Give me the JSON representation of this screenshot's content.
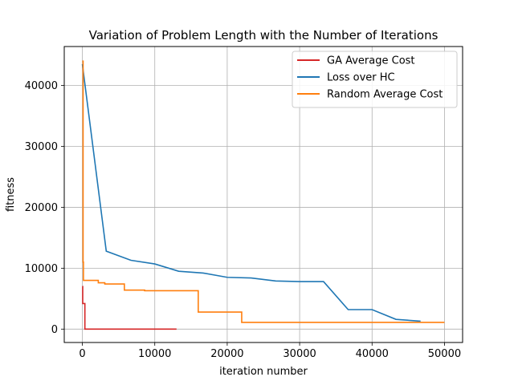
{
  "chart_data": {
    "type": "line",
    "title": "Variation of Problem Length with the Number of Iterations",
    "xlabel": "iteration number",
    "ylabel": "fitness",
    "xlim": [
      -2500,
      52500
    ],
    "ylim": [
      -2200,
      46400
    ],
    "xticks": [
      0,
      10000,
      20000,
      30000,
      40000,
      50000
    ],
    "yticks": [
      0,
      10000,
      20000,
      30000,
      40000
    ],
    "grid": true,
    "legend_position": "top-right",
    "series": [
      {
        "name": "GA Average Cost",
        "color": "#d62728",
        "step": true,
        "points": [
          [
            0,
            7000
          ],
          [
            50,
            4200
          ],
          [
            300,
            4200
          ],
          [
            350,
            0
          ],
          [
            13000,
            0
          ]
        ]
      },
      {
        "name": "Loss over HC",
        "color": "#1f77b4",
        "step": false,
        "points": [
          [
            0,
            43500
          ],
          [
            3300,
            12800
          ],
          [
            6700,
            11300
          ],
          [
            10000,
            10700
          ],
          [
            13300,
            9500
          ],
          [
            16700,
            9200
          ],
          [
            20000,
            8500
          ],
          [
            23300,
            8400
          ],
          [
            26700,
            7900
          ],
          [
            30000,
            7800
          ],
          [
            33300,
            7800
          ],
          [
            36700,
            3200
          ],
          [
            40000,
            3200
          ],
          [
            43300,
            1600
          ],
          [
            46700,
            1300
          ]
        ]
      },
      {
        "name": "Random Average Cost",
        "color": "#ff7f0e",
        "step": true,
        "points": [
          [
            0,
            44000
          ],
          [
            100,
            11000
          ],
          [
            150,
            8000
          ],
          [
            2200,
            7600
          ],
          [
            3100,
            7400
          ],
          [
            5800,
            6400
          ],
          [
            8600,
            6300
          ],
          [
            16000,
            2800
          ],
          [
            22000,
            1100
          ],
          [
            50000,
            1100
          ]
        ]
      }
    ]
  }
}
